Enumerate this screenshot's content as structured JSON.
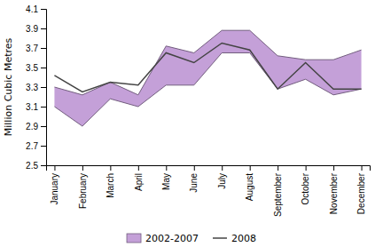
{
  "chart_data": {
    "type": "line",
    "categories": [
      "January",
      "February",
      "March",
      "April",
      "May",
      "June",
      "July",
      "August",
      "September",
      "October",
      "November",
      "December"
    ],
    "series": [
      {
        "name": "2002-2007",
        "type": "band",
        "color": "#c4a0d8",
        "upper": [
          3.3,
          3.22,
          3.35,
          3.22,
          3.72,
          3.65,
          3.88,
          3.88,
          3.62,
          3.58,
          3.58,
          3.68
        ],
        "lower": [
          3.1,
          2.9,
          3.18,
          3.1,
          3.32,
          3.32,
          3.65,
          3.65,
          3.28,
          3.38,
          3.22,
          3.28
        ]
      },
      {
        "name": "2008",
        "type": "line",
        "color": "#444444",
        "values": [
          3.42,
          3.25,
          3.35,
          3.32,
          3.65,
          3.55,
          3.75,
          3.68,
          3.28,
          3.55,
          3.28,
          3.28
        ]
      }
    ],
    "y_label": "Million Cubic Metres",
    "ylim": [
      2.5,
      4.1
    ],
    "yticks": [
      2.5,
      2.7,
      2.9,
      3.1,
      3.3,
      3.5,
      3.7,
      3.9,
      4.1
    ],
    "grid": false,
    "legend": "bottom"
  }
}
